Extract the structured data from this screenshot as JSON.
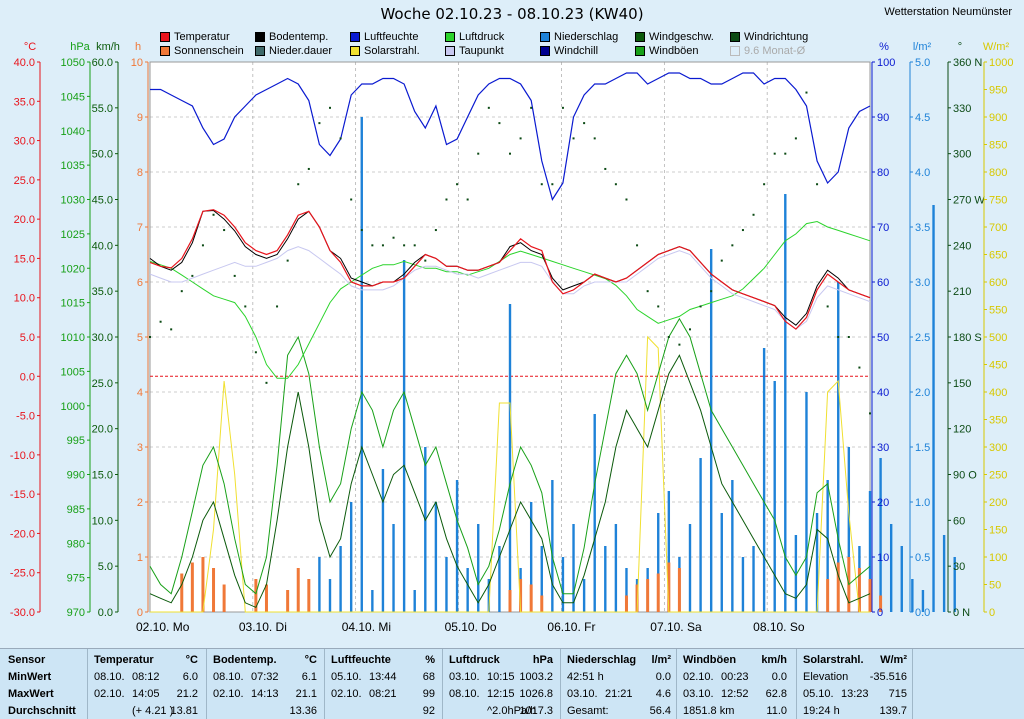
{
  "title": "Woche 02.10.23 - 08.10.23 (KW40)",
  "station": "Wetterstation Neumünster",
  "legend": [
    {
      "label": "Temperatur",
      "color": "#e8141c"
    },
    {
      "label": "Bodentemp.",
      "color": "#000000"
    },
    {
      "label": "Luftfeuchte",
      "color": "#0a1ad0"
    },
    {
      "label": "Luftdruck",
      "color": "#2cd42c"
    },
    {
      "label": "Niederschlag",
      "color": "#1e82d8"
    },
    {
      "label": "Windgeschw.",
      "color": "#0b5a0b"
    },
    {
      "label": "Windrichtung",
      "color": "#0b4a14"
    },
    {
      "label": "Sonnenschein",
      "color": "#f07838"
    },
    {
      "label": "Nieder.dauer",
      "color": "#406a6a"
    },
    {
      "label": "Solarstrahl.",
      "color": "#f0e030"
    },
    {
      "label": "Taupunkt",
      "color": "#c8c8f0"
    },
    {
      "label": "Windchill",
      "color": "#000090"
    },
    {
      "label": "Windböen",
      "color": "#18a018"
    },
    {
      "label": "9.6 Monat-Ø",
      "color": "#dddddd",
      "disabled": true
    }
  ],
  "colors": {
    "temperature": "#e8141c",
    "soil": "#000000",
    "humidity": "#0a1ad0",
    "pressure": "#2cd42c",
    "rain": "#1e82d8",
    "wind": "#0b5a0b",
    "gust": "#18a018",
    "winddir": "#0b4a14",
    "sun": "#f07838",
    "solar": "#f0e030",
    "dew": "#c8c8f0",
    "windchill": "#000090"
  },
  "chart_data": {
    "type": "line",
    "x": [
      "02.10. Mo",
      "03.10. Di",
      "04.10. Mi",
      "05.10. Do",
      "06.10. Fr",
      "07.10. Sa",
      "08.10. So"
    ],
    "left_axes": [
      {
        "unit": "°C",
        "color": "#e8141c",
        "ticks": [
          "40.0",
          "35.0",
          "30.0",
          "25.0",
          "20.0",
          "15.0",
          "10.0",
          "5.0",
          "0.0",
          "-5.0",
          "-10.0",
          "-15.0",
          "-20.0",
          "-25.0",
          "-30.0"
        ]
      },
      {
        "unit": "hPa",
        "color": "#18a018",
        "ticks": [
          "1050",
          "1045",
          "1040",
          "1035",
          "1030",
          "1025",
          "1020",
          "1015",
          "1010",
          "1005",
          "1000",
          "995",
          "990",
          "985",
          "980",
          "975",
          "970"
        ]
      },
      {
        "unit": "km/h",
        "color": "#0b5a0b",
        "ticks": [
          "60.0",
          "55.0",
          "50.0",
          "45.0",
          "40.0",
          "35.0",
          "30.0",
          "25.0",
          "20.0",
          "15.0",
          "10.0",
          "5.0",
          "0.0"
        ]
      },
      {
        "unit": "h",
        "color": "#f07838",
        "ticks": [
          "10",
          "9",
          "8",
          "7",
          "6",
          "5",
          "4",
          "3",
          "2",
          "1",
          "0"
        ]
      }
    ],
    "right_axes": [
      {
        "unit": "%",
        "color": "#0a1ad0",
        "ticks": [
          "100",
          "90",
          "80",
          "70",
          "60",
          "50",
          "40",
          "30",
          "20",
          "10",
          "0"
        ]
      },
      {
        "unit": "l/m²",
        "color": "#1e82d8",
        "ticks": [
          "5.0",
          "4.5",
          "4.0",
          "3.5",
          "3.0",
          "2.5",
          "2.0",
          "1.5",
          "1.0",
          "0.5",
          "0.0"
        ]
      },
      {
        "unit": "°",
        "color": "#0b4a14",
        "ticks": [
          "360 N",
          "330",
          "300",
          "270 W",
          "240",
          "210",
          "180 S",
          "150",
          "120",
          "90 O",
          "60",
          "30",
          "0 N"
        ]
      },
      {
        "unit": "W/m²",
        "color": "#d8c800",
        "ticks": [
          "1000",
          "950",
          "900",
          "850",
          "800",
          "750",
          "700",
          "650",
          "600",
          "550",
          "500",
          "450",
          "400",
          "350",
          "300",
          "250",
          "200",
          "150",
          "100",
          "50",
          "0"
        ]
      }
    ],
    "series": {
      "humidity": [
        95,
        95,
        94,
        93,
        92,
        88,
        85,
        86,
        90,
        92,
        94,
        95,
        96,
        97,
        96,
        93,
        85,
        83,
        86,
        94,
        96,
        96,
        97,
        97,
        96,
        91,
        88,
        92,
        85,
        86,
        90,
        94,
        96,
        97,
        97,
        96,
        93,
        82,
        75,
        78,
        90,
        94,
        96,
        96,
        97,
        98,
        98,
        96,
        97,
        98,
        98,
        97,
        97,
        96,
        96,
        97,
        98,
        98,
        96,
        97,
        97,
        95,
        92,
        82,
        78,
        80,
        88,
        91,
        92
      ],
      "temperature": [
        14.5,
        14,
        13.8,
        15,
        17.5,
        21,
        21.2,
        20.5,
        19,
        17,
        16,
        15.5,
        16,
        18,
        20.5,
        21,
        19,
        16,
        14.5,
        12,
        11.5,
        11.5,
        12,
        12,
        12.5,
        14,
        15.5,
        15,
        14,
        14,
        13.5,
        13.5,
        14,
        14.5,
        16,
        17.5,
        16.5,
        16,
        12,
        10.5,
        11,
        12,
        13,
        12.5,
        12,
        12.5,
        13.5,
        14.5,
        15.5,
        16,
        16.5,
        16,
        14.5,
        13,
        12,
        11,
        10.5,
        10,
        9.5,
        9,
        7,
        6,
        7.5,
        11,
        13,
        12,
        11,
        10.5,
        10
      ],
      "soil": [
        15,
        14,
        13.5,
        14.5,
        17,
        21,
        21.1,
        20,
        18.5,
        16.5,
        15.5,
        15,
        15.5,
        17.5,
        20,
        21,
        19,
        16,
        15,
        12.5,
        12,
        11.5,
        12,
        12,
        13,
        14.5,
        15.5,
        15,
        14,
        14,
        13.5,
        13.5,
        14,
        14.5,
        16.5,
        17,
        16,
        15.5,
        12.5,
        11,
        11.5,
        12,
        13,
        12.5,
        12,
        12.5,
        13.5,
        14.5,
        15.5,
        16,
        16.5,
        16,
        14.5,
        13,
        12,
        11,
        10.5,
        10,
        9.5,
        9,
        7.5,
        6.5,
        8,
        11.5,
        13.5,
        12.5,
        11,
        10.5,
        10
      ],
      "dew": [
        13,
        12.5,
        12,
        12,
        12.5,
        13,
        13.5,
        14,
        14.5,
        14,
        14,
        14.5,
        15,
        16,
        16.5,
        16,
        15,
        14,
        13,
        11.5,
        11,
        11,
        11,
        11.5,
        12.5,
        13.5,
        14,
        14,
        13.5,
        13,
        13,
        12.5,
        13,
        13.5,
        14,
        14.5,
        14.5,
        14,
        12,
        10.5,
        10.5,
        11.5,
        12,
        12,
        12,
        12,
        13,
        14,
        15,
        15.5,
        16,
        15.5,
        14,
        12.5,
        11.5,
        10.5,
        10,
        9.5,
        9,
        8.5,
        7,
        6,
        7,
        10,
        11.5,
        11,
        10.5,
        10,
        9.5
      ],
      "pressure": [
        1021,
        1020.5,
        1020,
        1019,
        1018,
        1017,
        1016,
        1015.5,
        1015,
        1013,
        1010,
        1006,
        1004,
        1004,
        1006,
        1009,
        1012,
        1015,
        1017,
        1018,
        1019,
        1020,
        1020.5,
        1020.5,
        1021,
        1020.5,
        1020,
        1020,
        1019.5,
        1019.5,
        1019,
        1019.5,
        1020,
        1021,
        1022,
        1022.5,
        1022,
        1021.5,
        1021,
        1020.5,
        1020,
        1019.5,
        1019,
        1018.5,
        1017.5,
        1016,
        1014,
        1013,
        1012,
        1012.5,
        1013,
        1014,
        1014.5,
        1015,
        1015.5,
        1016,
        1017,
        1018.5,
        1020,
        1022,
        1024,
        1025,
        1026.5,
        1026.8,
        1026,
        1025.5,
        1025,
        1024.5,
        1024
      ],
      "wind": [
        2,
        1.5,
        1,
        3,
        6,
        10,
        12,
        8,
        4,
        1,
        0.5,
        3,
        10,
        18,
        24,
        18,
        10,
        6,
        8,
        14,
        18,
        15,
        12,
        15,
        16,
        13,
        10,
        12,
        8,
        5,
        3,
        1,
        3,
        6,
        9,
        12,
        10,
        8,
        3,
        1,
        1,
        4,
        8,
        12,
        18,
        22,
        20,
        18,
        22,
        26,
        28,
        25,
        22,
        18,
        14,
        12,
        10,
        8,
        6,
        4,
        2,
        1.5,
        3,
        9,
        8,
        4,
        1,
        1.5,
        2
      ],
      "gust": [
        5,
        3,
        2,
        6,
        11,
        16,
        18,
        14,
        8,
        3,
        2,
        6,
        16,
        28,
        30,
        26,
        18,
        12,
        14,
        20,
        24,
        22,
        18,
        22,
        24,
        20,
        16,
        18,
        14,
        10,
        7,
        3,
        5,
        9,
        14,
        18,
        16,
        13,
        6,
        2,
        2,
        7,
        14,
        20,
        26,
        28,
        26,
        22,
        26,
        30,
        32,
        30,
        26,
        22,
        20,
        18,
        16,
        14,
        12,
        10,
        6,
        4,
        6,
        13,
        14,
        8,
        3,
        4,
        5
      ],
      "solar": [
        0,
        0,
        0,
        0,
        0,
        0,
        150,
        420,
        250,
        0,
        0,
        0,
        0,
        0,
        0,
        0,
        0,
        0,
        0,
        0,
        0,
        0,
        0,
        0,
        0,
        0,
        0,
        0,
        0,
        0,
        0,
        0,
        0,
        380,
        380,
        0,
        0,
        0,
        0,
        0,
        0,
        0,
        0,
        0,
        0,
        0,
        0,
        500,
        480,
        0,
        0,
        0,
        0,
        0,
        0,
        0,
        0,
        0,
        0,
        0,
        0,
        0,
        0,
        0,
        400,
        420,
        180,
        0,
        0
      ],
      "rain": [
        [
          16,
          0.5
        ],
        [
          17,
          0.3
        ],
        [
          18,
          0.6
        ],
        [
          19,
          1.0
        ],
        [
          20,
          4.5
        ],
        [
          21,
          0.2
        ],
        [
          22,
          1.3
        ],
        [
          23,
          0.8
        ],
        [
          24,
          3.2
        ],
        [
          25,
          0.2
        ],
        [
          26,
          1.5
        ],
        [
          27,
          1.0
        ],
        [
          28,
          0.5
        ],
        [
          29,
          1.2
        ],
        [
          30,
          0.4
        ],
        [
          31,
          0.8
        ],
        [
          32,
          0.3
        ],
        [
          33,
          0.6
        ],
        [
          34,
          2.8
        ],
        [
          35,
          0.4
        ],
        [
          36,
          1.0
        ],
        [
          37,
          0.6
        ],
        [
          38,
          1.2
        ],
        [
          39,
          0.5
        ],
        [
          40,
          0.8
        ],
        [
          41,
          0.3
        ],
        [
          42,
          1.8
        ],
        [
          43,
          0.6
        ],
        [
          44,
          0.8
        ],
        [
          45,
          0.4
        ],
        [
          46,
          0.3
        ],
        [
          47,
          0.4
        ],
        [
          48,
          0.9
        ],
        [
          49,
          1.1
        ],
        [
          50,
          0.5
        ],
        [
          51,
          0.8
        ],
        [
          52,
          1.4
        ],
        [
          53,
          3.3
        ],
        [
          54,
          0.9
        ],
        [
          55,
          1.2
        ],
        [
          56,
          0.5
        ],
        [
          57,
          0.6
        ],
        [
          58,
          2.4
        ],
        [
          59,
          2.1
        ],
        [
          60,
          3.8
        ],
        [
          61,
          0.7
        ],
        [
          62,
          2.0
        ],
        [
          63,
          0.9
        ],
        [
          64,
          1.2
        ],
        [
          65,
          3.0
        ],
        [
          66,
          1.5
        ],
        [
          67,
          0.6
        ],
        [
          68,
          1.1
        ],
        [
          69,
          1.4
        ],
        [
          70,
          0.8
        ],
        [
          71,
          0.6
        ],
        [
          72,
          0.3
        ],
        [
          73,
          0.2
        ],
        [
          74,
          3.7
        ],
        [
          75,
          0.7
        ],
        [
          76,
          0.5
        ]
      ],
      "sunshine": [
        [
          3,
          0.7
        ],
        [
          4,
          0.9
        ],
        [
          5,
          1.0
        ],
        [
          6,
          0.8
        ],
        [
          7,
          0.5
        ],
        [
          10,
          0.6
        ],
        [
          11,
          0.5
        ],
        [
          13,
          0.4
        ],
        [
          14,
          0.8
        ],
        [
          15,
          0.6
        ],
        [
          34,
          0.4
        ],
        [
          35,
          0.6
        ],
        [
          36,
          0.5
        ],
        [
          37,
          0.3
        ],
        [
          45,
          0.3
        ],
        [
          46,
          0.5
        ],
        [
          47,
          0.6
        ],
        [
          48,
          0.7
        ],
        [
          49,
          0.9
        ],
        [
          50,
          0.8
        ],
        [
          64,
          0.6
        ],
        [
          65,
          0.9
        ],
        [
          66,
          1.0
        ],
        [
          67,
          0.8
        ],
        [
          68,
          0.6
        ],
        [
          69,
          0.3
        ]
      ],
      "winddir": [
        180,
        190,
        185,
        210,
        220,
        240,
        260,
        250,
        220,
        200,
        170,
        150,
        200,
        230,
        280,
        290,
        320,
        330,
        310,
        270,
        250,
        240,
        240,
        245,
        240,
        240,
        230,
        250,
        270,
        280,
        270,
        300,
        330,
        320,
        300,
        310,
        330,
        280,
        280,
        330,
        310,
        320,
        310,
        290,
        280,
        270,
        240,
        210,
        200,
        180,
        175,
        185,
        200,
        210,
        230,
        240,
        250,
        260,
        280,
        300,
        300,
        310,
        340,
        280,
        200,
        180,
        180,
        160,
        130
      ]
    }
  },
  "table": {
    "row_labels": [
      "Sensor",
      "MinWert",
      "MaxWert",
      "Durchschnitt"
    ],
    "columns": [
      {
        "name": "Temperatur",
        "unit": "°C",
        "rows": [
          [
            "08.10.",
            "08:12",
            "6.0"
          ],
          [
            "02.10.",
            "14:05",
            "21.2"
          ],
          [
            "",
            "(+ 4.21 )",
            "13.81"
          ]
        ]
      },
      {
        "name": "Bodentemp.",
        "unit": "°C",
        "rows": [
          [
            "08.10.",
            "07:32",
            "6.1"
          ],
          [
            "02.10.",
            "14:13",
            "21.1"
          ],
          [
            "",
            "",
            "13.36"
          ]
        ]
      },
      {
        "name": "Luftfeuchte",
        "unit": "%",
        "rows": [
          [
            "05.10.",
            "13:44",
            "68"
          ],
          [
            "02.10.",
            "08:21",
            "99"
          ],
          [
            "",
            "",
            "92"
          ]
        ]
      },
      {
        "name": "Luftdruck",
        "unit": "hPa",
        "rows": [
          [
            "03.10.",
            "10:15",
            "1003.2"
          ],
          [
            "08.10.",
            "12:15",
            "1026.8"
          ],
          [
            "",
            "^2.0hPa/h",
            "1017.3"
          ]
        ]
      },
      {
        "name": "Niederschlag",
        "unit": "l/m²",
        "rows": [
          [
            "42:51 h",
            "",
            "0.0"
          ],
          [
            "03.10.",
            "21:21",
            "4.6"
          ],
          [
            "Gesamt:",
            "",
            "56.4"
          ]
        ]
      },
      {
        "name": "Windböen",
        "unit": "km/h",
        "rows": [
          [
            "02.10.",
            "00:23",
            "0.0"
          ],
          [
            "03.10.",
            "12:52",
            "62.8"
          ],
          [
            "1851.8 km",
            "",
            "11.0"
          ]
        ]
      },
      {
        "name": "Solarstrahl.",
        "unit": "W/m²",
        "rows": [
          [
            "Elevation",
            "",
            "-35.516"
          ],
          [
            "05.10.",
            "13:23",
            "715"
          ],
          [
            "19:24 h",
            "",
            "139.7"
          ]
        ]
      }
    ]
  }
}
